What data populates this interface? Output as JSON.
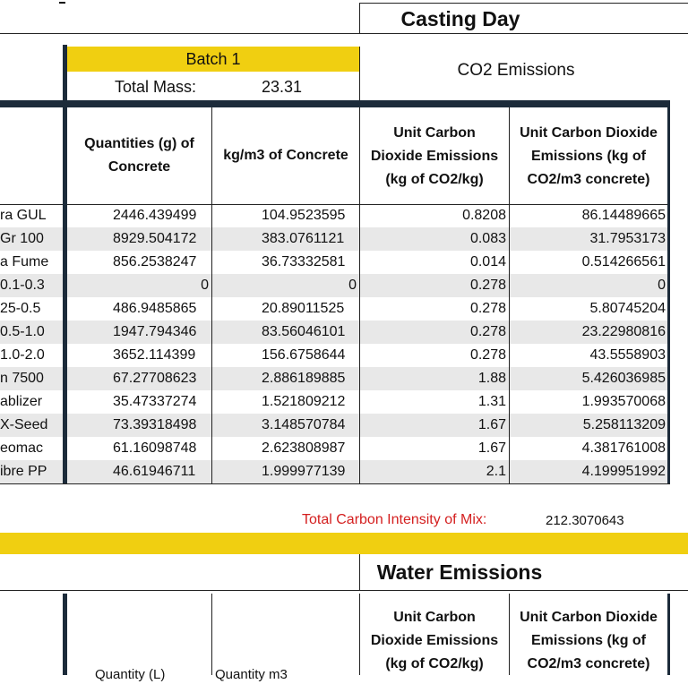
{
  "top": {
    "title": "Casting Day",
    "batch_label": "Batch 1",
    "total_mass_label": "Total Mass:",
    "total_mass_value": "23.31",
    "co2_label": "CO2 Emissions"
  },
  "table": {
    "headers": {
      "quantities": [
        "Quantities (g) of",
        "Concrete"
      ],
      "kg_m3": "kg/m3 of Concrete",
      "unit_co2": [
        "Unit Carbon",
        "Dioxide Emissions",
        "(kg of CO2/kg)"
      ],
      "unit_co2_conc": [
        "Unit Carbon Dioxide",
        "Emissions (kg of",
        "CO2/m3 concrete)"
      ]
    },
    "rows": [
      {
        "label": "ra GUL",
        "q": "2446.439499",
        "kg": "104.9523595",
        "unit": "0.8208",
        "total": "86.14489665"
      },
      {
        "label": "Gr 100",
        "q": "8929.504172",
        "kg": "383.0761121",
        "unit": "0.083",
        "total": "31.7953173"
      },
      {
        "label": "a Fume",
        "q": "856.2538247",
        "kg": "36.73332581",
        "unit": "0.014",
        "total": "0.514266561"
      },
      {
        "label": "0.1-0.3",
        "q": "0",
        "kg": "0",
        "unit": "0.278",
        "total": "0"
      },
      {
        "label": "25-0.5",
        "q": "486.9485865",
        "kg": "20.89011525",
        "unit": "0.278",
        "total": "5.80745204"
      },
      {
        "label": "0.5-1.0",
        "q": "1947.794346",
        "kg": "83.56046101",
        "unit": "0.278",
        "total": "23.22980816"
      },
      {
        "label": "1.0-2.0",
        "q": "3652.114399",
        "kg": "156.6758644",
        "unit": "0.278",
        "total": "43.5558903"
      },
      {
        "label": "n 7500",
        "q": "67.27708623",
        "kg": "2.886189885",
        "unit": "1.88",
        "total": "5.426036985"
      },
      {
        "label": "ablizer",
        "q": "35.47337274",
        "kg": "1.521809212",
        "unit": "1.31",
        "total": "1.993570068"
      },
      {
        "label": "X-Seed",
        "q": "73.39318498",
        "kg": "3.148570784",
        "unit": "1.67",
        "total": "5.258113209"
      },
      {
        "label": "eomac",
        "q": "61.16098748",
        "kg": "2.623808987",
        "unit": "1.67",
        "total": "4.381761008"
      },
      {
        "label": "ibre PP",
        "q": "46.61946711",
        "kg": "1.999977139",
        "unit": "2.1",
        "total": "4.199951992"
      }
    ],
    "total_label": "Total Carbon Intensity of Mix:",
    "total_value": "212.3070643"
  },
  "water": {
    "title": "Water Emissions",
    "col_quantity": "Quantity (L)",
    "col_quantity_m3": "Quantity m3",
    "unit_co2": [
      "Unit Carbon",
      "Dioxide Emissions",
      "(kg of CO2/kg)"
    ],
    "unit_co2_conc": [
      "Unit Carbon Dioxide",
      "Emissions (kg of",
      "CO2/m3 concrete)"
    ]
  },
  "colors": {
    "batch_yellow": "#f0cf11",
    "navy": "#1c2b3a",
    "total_red": "#d41f1f",
    "row_shade": "#e8e8e8"
  }
}
